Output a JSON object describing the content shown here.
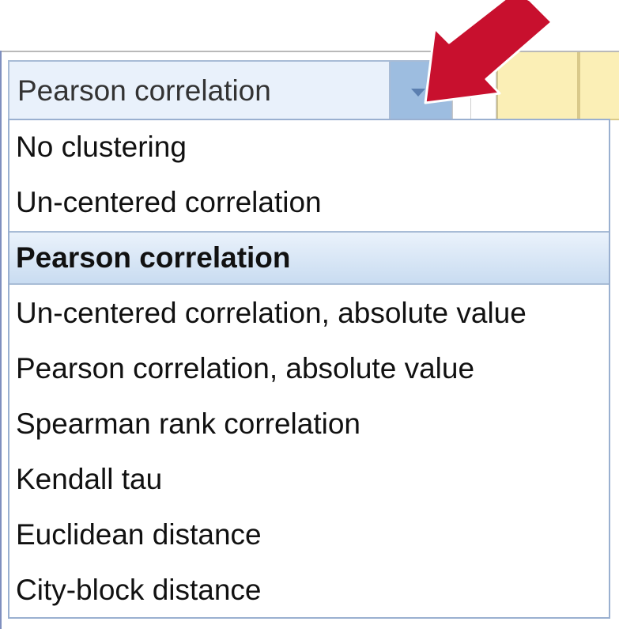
{
  "combo": {
    "value": "Pearson correlation",
    "button_icon": "chevron-down-icon"
  },
  "dropdown": {
    "options": [
      "No clustering",
      "Un-centered correlation",
      "Pearson correlation",
      "Un-centered correlation, absolute value",
      "Pearson correlation, absolute value",
      "Spearman rank correlation",
      "Kendall tau",
      "Euclidean distance",
      "City-block distance"
    ],
    "selected_index": 2
  },
  "callout": {
    "icon": "arrow-icon",
    "color": "#c8102e"
  },
  "colors": {
    "selected_bg": "#c9dcf1",
    "combo_bg": "#e9f1fb",
    "button_bg": "#9dbde0",
    "header_cell": "#fbefb6"
  }
}
